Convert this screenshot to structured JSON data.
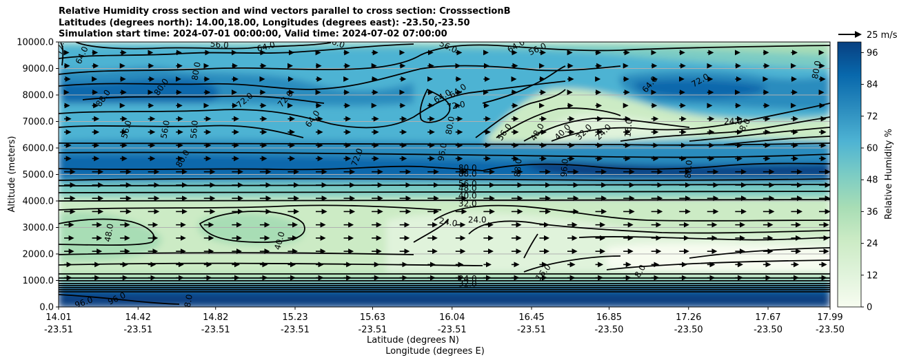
{
  "chart_data": {
    "type": "heatmap",
    "title": [
      "Relative Humidity cross section and wind vectors parallel to cross section: CrosssectionB",
      "Latitudes (degrees north): 14.00,18.00, Longitudes (degrees east): -23.50,-23.50",
      "Simulation start time: 2024-07-01 00:00:00, Valid time: 2024-07-02 07:00:00"
    ],
    "ylabel": "Altitude (meters)",
    "xlabel_lat": "Latitude (degrees N)",
    "xlabel_lon": "Longitude (degrees E)",
    "ylim": [
      0,
      10000
    ],
    "y_ticks": [
      "0.0",
      "1000.0",
      "2000.0",
      "3000.0",
      "4000.0",
      "5000.0",
      "6000.0",
      "7000.0",
      "8000.0",
      "9000.0",
      "10000.0"
    ],
    "x_ticks": [
      {
        "lat": "14.01",
        "lon": "-23.51"
      },
      {
        "lat": "14.42",
        "lon": "-23.51"
      },
      {
        "lat": "14.82",
        "lon": "-23.51"
      },
      {
        "lat": "15.23",
        "lon": "-23.51"
      },
      {
        "lat": "15.63",
        "lon": "-23.51"
      },
      {
        "lat": "16.04",
        "lon": "-23.51"
      },
      {
        "lat": "16.45",
        "lon": "-23.51"
      },
      {
        "lat": "16.85",
        "lon": "-23.50"
      },
      {
        "lat": "17.26",
        "lon": "-23.50"
      },
      {
        "lat": "17.67",
        "lon": "-23.50"
      },
      {
        "lat": "17.99",
        "lon": "-23.50"
      }
    ],
    "grid": "horizontal",
    "colorbar": {
      "label": "Relative Humidity %",
      "ticks": [
        "0",
        "12",
        "24",
        "36",
        "48",
        "60",
        "72",
        "84",
        "96"
      ],
      "min": 0,
      "max": 100,
      "colormap": "GnBu",
      "colors": [
        "#f7fcf0",
        "#e0f3db",
        "#ccebc5",
        "#a8ddb5",
        "#7bccc4",
        "#4eb3d3",
        "#2b8cbe",
        "#0868ac",
        "#084081"
      ]
    },
    "quiver_key": {
      "label": "25 m/s"
    },
    "contour_labels": [
      {
        "v": "72.0",
        "lat": 14.02,
        "alt": 9850,
        "rot": -80
      },
      {
        "v": "64.0",
        "lat": 14.13,
        "alt": 9500,
        "rot": -65
      },
      {
        "v": "56.0",
        "lat": 14.84,
        "alt": 9900,
        "rot": 5
      },
      {
        "v": "64.0",
        "lat": 15.08,
        "alt": 9820,
        "rot": -15
      },
      {
        "v": "56.0",
        "lat": 15.44,
        "alt": 9980,
        "rot": 20
      },
      {
        "v": "56.0",
        "lat": 16.02,
        "alt": 9820,
        "rot": 25
      },
      {
        "v": "64.0",
        "lat": 16.37,
        "alt": 9850,
        "rot": -30
      },
      {
        "v": "56.0",
        "lat": 16.48,
        "alt": 9730,
        "rot": -25
      },
      {
        "v": "80.0",
        "lat": 14.72,
        "alt": 8900,
        "rot": -80
      },
      {
        "v": "80.0",
        "lat": 14.54,
        "alt": 8300,
        "rot": -55
      },
      {
        "v": "88.0",
        "lat": 14.24,
        "alt": 7880,
        "rot": -55
      },
      {
        "v": "72.0",
        "lat": 14.97,
        "alt": 7800,
        "rot": -40
      },
      {
        "v": "72.0",
        "lat": 15.18,
        "alt": 7850,
        "rot": -50
      },
      {
        "v": "64.0",
        "lat": 15.99,
        "alt": 7950,
        "rot": -30
      },
      {
        "v": "64.0",
        "lat": 16.07,
        "alt": 8150,
        "rot": -35
      },
      {
        "v": "72.0",
        "lat": 16.06,
        "alt": 7600,
        "rot": -10
      },
      {
        "v": "80.0",
        "lat": 16.03,
        "alt": 6850,
        "rot": -80
      },
      {
        "v": "56.0",
        "lat": 14.36,
        "alt": 6700,
        "rot": -75
      },
      {
        "v": "56.0",
        "lat": 14.56,
        "alt": 6700,
        "rot": -80
      },
      {
        "v": "56.0",
        "lat": 14.71,
        "alt": 6700,
        "rot": -85
      },
      {
        "v": "64.0",
        "lat": 15.32,
        "alt": 7100,
        "rot": -55
      },
      {
        "v": "56.0",
        "lat": 16.31,
        "alt": 6600,
        "rot": -55
      },
      {
        "v": "48.0",
        "lat": 16.48,
        "alt": 6600,
        "rot": -60
      },
      {
        "v": "40.0",
        "lat": 16.61,
        "alt": 6600,
        "rot": -45
      },
      {
        "v": "32.0",
        "lat": 16.72,
        "alt": 6600,
        "rot": -45
      },
      {
        "v": "24.0",
        "lat": 16.82,
        "alt": 6600,
        "rot": -45
      },
      {
        "v": "16.0",
        "lat": 16.95,
        "alt": 6750,
        "rot": -85
      },
      {
        "v": "8.0",
        "lat": 17.55,
        "alt": 6870,
        "rot": -60
      },
      {
        "v": "24.0",
        "lat": 17.49,
        "alt": 7000,
        "rot": 0
      },
      {
        "v": "64.0",
        "lat": 17.06,
        "alt": 8400,
        "rot": -50
      },
      {
        "v": "72.0",
        "lat": 17.32,
        "alt": 8550,
        "rot": -30
      },
      {
        "v": "80.0",
        "lat": 17.92,
        "alt": 8950,
        "rot": -80
      },
      {
        "v": "80.0",
        "lat": 14.65,
        "alt": 5600,
        "rot": -60
      },
      {
        "v": "72.0",
        "lat": 15.55,
        "alt": 5650,
        "rot": -70
      },
      {
        "v": "96.0",
        "lat": 15.99,
        "alt": 5850,
        "rot": -80
      },
      {
        "v": "88.0",
        "lat": 16.38,
        "alt": 5250,
        "rot": -85
      },
      {
        "v": "96.0",
        "lat": 16.62,
        "alt": 5250,
        "rot": -85
      },
      {
        "v": "88.0",
        "lat": 17.26,
        "alt": 5200,
        "rot": -85
      },
      {
        "v": "80.0",
        "lat": 16.12,
        "alt": 5250,
        "rot": 0
      },
      {
        "v": "88.0",
        "lat": 16.12,
        "alt": 5030,
        "rot": 0
      },
      {
        "v": "56.0",
        "lat": 16.12,
        "alt": 4650,
        "rot": 0
      },
      {
        "v": "48.0",
        "lat": 16.12,
        "alt": 4480,
        "rot": 0
      },
      {
        "v": "40.0",
        "lat": 16.12,
        "alt": 4200,
        "rot": 0
      },
      {
        "v": "32.0",
        "lat": 16.12,
        "alt": 3900,
        "rot": 0
      },
      {
        "v": "24.0",
        "lat": 16.02,
        "alt": 3200,
        "rot": 10
      },
      {
        "v": "24.0",
        "lat": 16.17,
        "alt": 3280,
        "rot": 0
      },
      {
        "v": "48.0",
        "lat": 14.27,
        "alt": 2800,
        "rot": -80
      },
      {
        "v": "40.0",
        "lat": 15.15,
        "alt": 2500,
        "rot": -75
      },
      {
        "v": "16.0",
        "lat": 16.51,
        "alt": 1300,
        "rot": -50
      },
      {
        "v": "8.0",
        "lat": 17.01,
        "alt": 1350,
        "rot": -60
      },
      {
        "v": "24.0",
        "lat": 16.12,
        "alt": 1070,
        "rot": 0
      },
      {
        "v": "32.0",
        "lat": 16.12,
        "alt": 870,
        "rot": 0
      },
      {
        "v": "96.0",
        "lat": 14.31,
        "alt": 320,
        "rot": -25
      },
      {
        "v": "96.0",
        "lat": 14.14,
        "alt": 170,
        "rot": -20
      },
      {
        "v": "8.0",
        "lat": 14.68,
        "alt": 230,
        "rot": -80
      }
    ]
  }
}
